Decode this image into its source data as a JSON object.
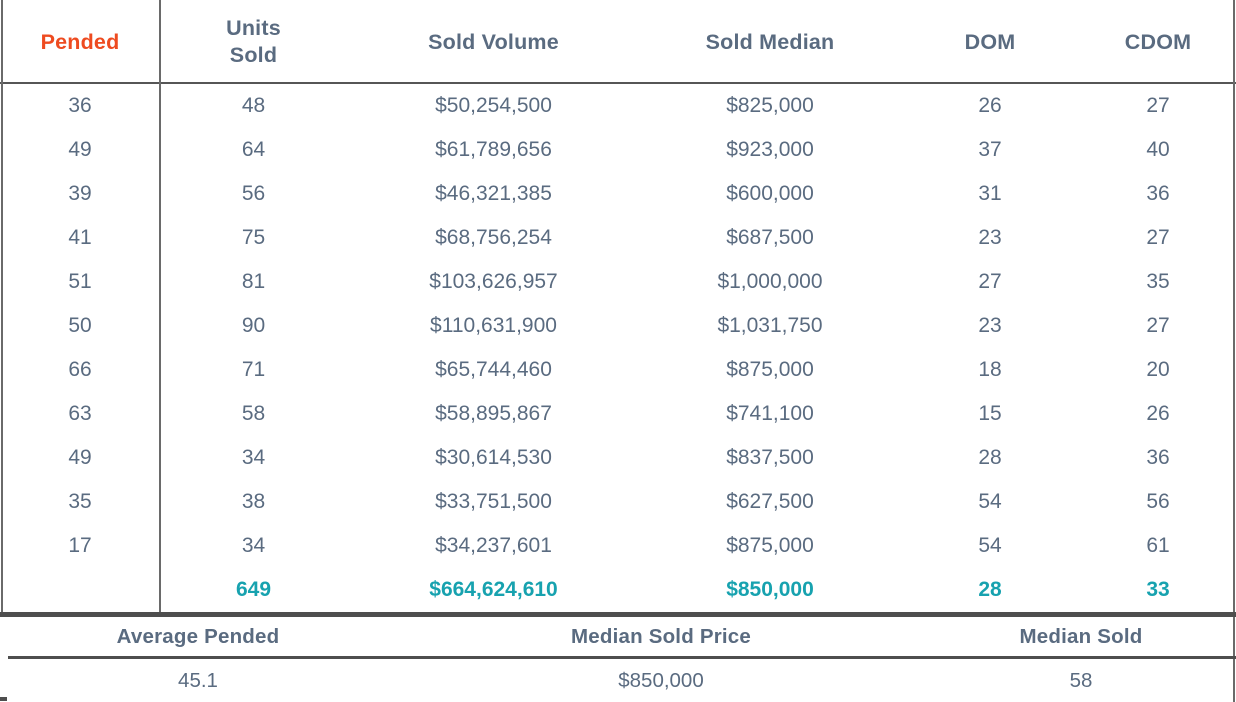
{
  "colors": {
    "pended_header": "#ee4b20",
    "totals_text": "#17a2af",
    "body_text": "#5a6b80",
    "line": "#4e4e4e"
  },
  "table": {
    "columns": [
      {
        "label": "Pended"
      },
      {
        "label": "Units Sold"
      },
      {
        "label": "Sold Volume"
      },
      {
        "label": "Sold Median"
      },
      {
        "label": "DOM"
      },
      {
        "label": "CDOM"
      }
    ],
    "rows": [
      [
        "36",
        "48",
        "$50,254,500",
        "$825,000",
        "26",
        "27"
      ],
      [
        "49",
        "64",
        "$61,789,656",
        "$923,000",
        "37",
        "40"
      ],
      [
        "39",
        "56",
        "$46,321,385",
        "$600,000",
        "31",
        "36"
      ],
      [
        "41",
        "75",
        "$68,756,254",
        "$687,500",
        "23",
        "27"
      ],
      [
        "51",
        "81",
        "$103,626,957",
        "$1,000,000",
        "27",
        "35"
      ],
      [
        "50",
        "90",
        "$110,631,900",
        "$1,031,750",
        "23",
        "27"
      ],
      [
        "66",
        "71",
        "$65,744,460",
        "$875,000",
        "18",
        "20"
      ],
      [
        "63",
        "58",
        "$58,895,867",
        "$741,100",
        "15",
        "26"
      ],
      [
        "49",
        "34",
        "$30,614,530",
        "$837,500",
        "28",
        "36"
      ],
      [
        "35",
        "38",
        "$33,751,500",
        "$627,500",
        "54",
        "56"
      ],
      [
        "17",
        "34",
        "$34,237,601",
        "$875,000",
        "54",
        "61"
      ]
    ],
    "totals": [
      "",
      "649",
      "$664,624,610",
      "$850,000",
      "28",
      "33"
    ]
  },
  "summary": {
    "items": [
      {
        "label": "Average Pended",
        "value": "45.1"
      },
      {
        "label": "Median Sold Price",
        "value": "$850,000"
      },
      {
        "label": "Median Sold",
        "value": "58"
      }
    ]
  }
}
